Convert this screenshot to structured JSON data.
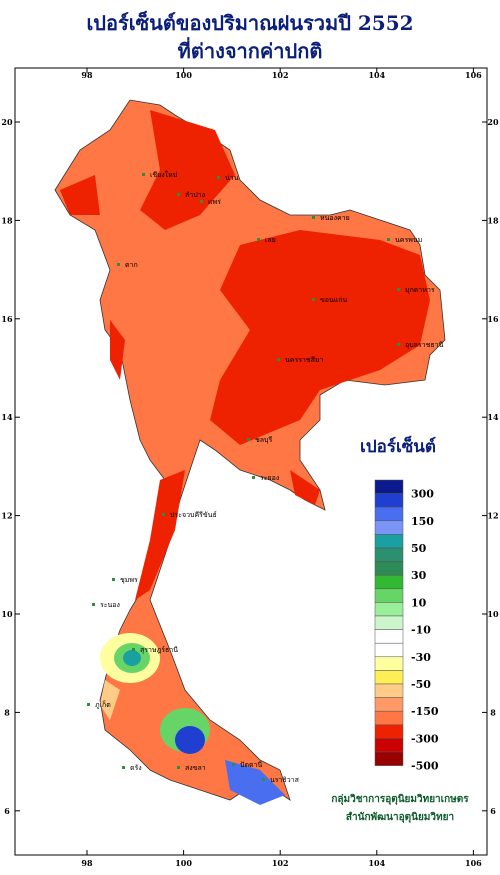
{
  "header": {
    "title": "เปอร์เซ็นต์ของปริมาณฝนรวมปี 2552",
    "subtitle": "ที่ต่างจากค่าปกติ"
  },
  "map": {
    "lon_ticks": [
      98,
      100,
      102,
      104,
      106
    ],
    "lat_ticks": [
      20,
      18,
      16,
      14,
      12,
      10,
      8,
      6
    ],
    "places": [
      "เชียงใหม่",
      "ลำปาง",
      "แพร่",
      "น่าน",
      "ตาก",
      "เลย",
      "หนองคาย",
      "นครพนม",
      "ขอนแก่น",
      "มุกดาหาร",
      "อุบลราชธานี",
      "นครราชสีมา",
      "ชลบุรี",
      "ระยอง",
      "ประจวบคีรีขันธ์",
      "ชุมพร",
      "ระนอง",
      "สุราษฎร์ธานี",
      "ภูเก็ต",
      "ตรัง",
      "สงขลา",
      "ปัตตานี",
      "นราธิวาส"
    ]
  },
  "legend": {
    "title": "เปอร์เซ็นต์",
    "labels": [
      300,
      150,
      50,
      30,
      10,
      -10,
      -30,
      -50,
      -150,
      -300,
      -500
    ],
    "colors": [
      "#0a1a8c",
      "#1f3fd0",
      "#4a6ef0",
      "#7a95f5",
      "#1aa0a0",
      "#2a9070",
      "#2e8b57",
      "#33b833",
      "#66d466",
      "#99ee99",
      "#ccf5cc",
      "#ffffff",
      "#ffffff",
      "#ffffa0",
      "#ffee55",
      "#ffcc88",
      "#ff9966",
      "#ff7744",
      "#ee2200",
      "#cc0000",
      "#990000"
    ]
  },
  "credits": [
    "กลุ่มวิชาการอุตุนิยมวิทยาเกษตร",
    "สำนักพัฒนาอุตุนิยมวิทยา"
  ]
}
